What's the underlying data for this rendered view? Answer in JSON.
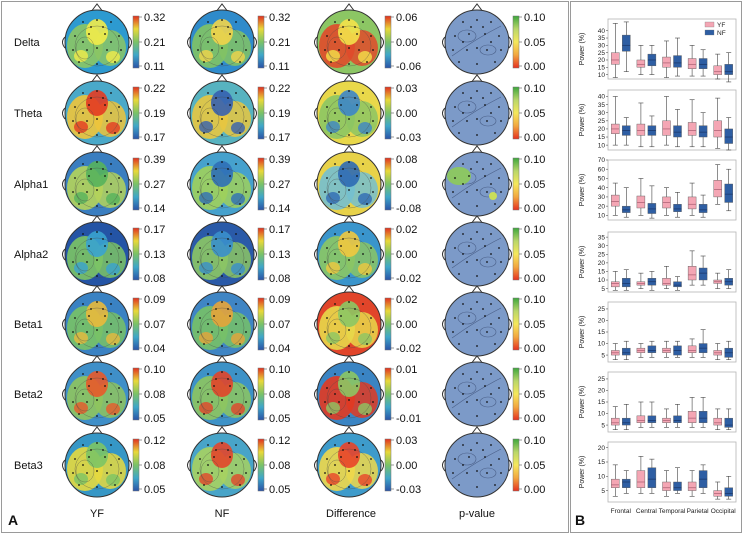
{
  "panel_a": {
    "letter": "A",
    "column_labels": [
      "YF",
      "NF",
      "Difference",
      "p-value"
    ],
    "rows": [
      {
        "band": "Delta",
        "yf_scale": [
          "0.32",
          "0.21",
          "0.11"
        ],
        "nf_scale": [
          "0.32",
          "0.21",
          "0.11"
        ],
        "diff_scale": [
          "0.06",
          "0.00",
          "-0.06"
        ],
        "p_scale": [
          "0.10",
          "0.05",
          "0.00"
        ]
      },
      {
        "band": "Theta",
        "yf_scale": [
          "0.22",
          "0.19",
          "0.17"
        ],
        "nf_scale": [
          "0.22",
          "0.19",
          "0.17"
        ],
        "diff_scale": [
          "0.03",
          "0.00",
          "-0.03"
        ],
        "p_scale": [
          "0.10",
          "0.05",
          "0.00"
        ]
      },
      {
        "band": "Alpha1",
        "yf_scale": [
          "0.39",
          "0.27",
          "0.14"
        ],
        "nf_scale": [
          "0.39",
          "0.27",
          "0.14"
        ],
        "diff_scale": [
          "0.08",
          "0.00",
          "-0.08"
        ],
        "p_scale": [
          "0.10",
          "0.05",
          "0.00"
        ]
      },
      {
        "band": "Alpha2",
        "yf_scale": [
          "0.17",
          "0.13",
          "0.08"
        ],
        "nf_scale": [
          "0.17",
          "0.13",
          "0.08"
        ],
        "diff_scale": [
          "0.02",
          "0.00",
          "-0.02"
        ],
        "p_scale": [
          "0.10",
          "0.05",
          "0.00"
        ]
      },
      {
        "band": "Beta1",
        "yf_scale": [
          "0.09",
          "0.07",
          "0.04"
        ],
        "nf_scale": [
          "0.09",
          "0.07",
          "0.04"
        ],
        "diff_scale": [
          "0.02",
          "0.00",
          "-0.02"
        ],
        "p_scale": [
          "0.10",
          "0.05",
          "0.00"
        ]
      },
      {
        "band": "Beta2",
        "yf_scale": [
          "0.10",
          "0.08",
          "0.05"
        ],
        "nf_scale": [
          "0.10",
          "0.08",
          "0.05"
        ],
        "diff_scale": [
          "0.01",
          "0.00",
          "-0.01"
        ],
        "p_scale": [
          "0.10",
          "0.05",
          "0.00"
        ]
      },
      {
        "band": "Beta3",
        "yf_scale": [
          "0.12",
          "0.08",
          "0.05"
        ],
        "nf_scale": [
          "0.12",
          "0.08",
          "0.05"
        ],
        "diff_scale": [
          "0.03",
          "0.00",
          "-0.03"
        ],
        "p_scale": [
          "0.10",
          "0.05",
          "0.00"
        ]
      }
    ]
  },
  "chart_data": {
    "type": "box",
    "panel_letter": "B",
    "ylabel": "Power (%)",
    "categories": [
      "Frontal",
      "Central",
      "Temporal",
      "Parietal",
      "Occipital"
    ],
    "legend": [
      {
        "name": "YF",
        "color": "#f4a6b4"
      },
      {
        "name": "NF",
        "color": "#2e5ea3"
      }
    ],
    "note": "box values are [whisker_low, q1, median, q3, whisker_high] per region, estimated",
    "panels": [
      {
        "band": "Delta",
        "yticks": [
          10,
          15,
          20,
          25,
          30,
          35,
          40
        ],
        "ylim": [
          7,
          48
        ],
        "YF": [
          [
            8,
            17,
            20,
            25,
            45
          ],
          [
            10,
            15,
            17,
            20,
            30
          ],
          [
            8,
            15,
            18,
            22,
            33
          ],
          [
            9,
            14,
            17,
            21,
            30
          ],
          [
            7,
            10,
            12,
            16,
            24
          ]
        ],
        "NF": [
          [
            12,
            26,
            30,
            37,
            46
          ],
          [
            10,
            16,
            20,
            24,
            30
          ],
          [
            9,
            15,
            18,
            23,
            35
          ],
          [
            9,
            14,
            17,
            21,
            27
          ],
          [
            5,
            10,
            12,
            17,
            25
          ]
        ]
      },
      {
        "band": "Theta",
        "yticks": [
          10,
          15,
          20,
          25,
          30,
          35,
          40
        ],
        "ylim": [
          7,
          44
        ],
        "YF": [
          [
            10,
            17,
            20,
            23,
            40
          ],
          [
            9,
            16,
            19,
            23,
            36
          ],
          [
            10,
            16,
            20,
            25,
            40
          ],
          [
            9,
            16,
            19,
            24,
            38
          ],
          [
            8,
            15,
            19,
            25,
            39
          ]
        ],
        "NF": [
          [
            10,
            16,
            19,
            22,
            27
          ],
          [
            9,
            16,
            19,
            22,
            28
          ],
          [
            9,
            15,
            18,
            22,
            32
          ],
          [
            9,
            15,
            18,
            22,
            30
          ],
          [
            7,
            11,
            15,
            20,
            27
          ]
        ]
      },
      {
        "band": "Alpha1",
        "yticks": [
          10,
          20,
          30,
          40,
          50,
          60,
          70
        ],
        "ylim": [
          5,
          70
        ],
        "YF": [
          [
            10,
            20,
            25,
            32,
            45
          ],
          [
            10,
            18,
            24,
            31,
            50
          ],
          [
            10,
            18,
            24,
            30,
            40
          ],
          [
            10,
            17,
            22,
            30,
            45
          ],
          [
            22,
            30,
            38,
            48,
            65
          ]
        ],
        "NF": [
          [
            8,
            13,
            16,
            20,
            40
          ],
          [
            7,
            12,
            17,
            23,
            42
          ],
          [
            8,
            14,
            17,
            22,
            35
          ],
          [
            8,
            13,
            16,
            22,
            32
          ],
          [
            15,
            24,
            33,
            44,
            60
          ]
        ]
      },
      {
        "band": "Alpha2",
        "yticks": [
          5,
          10,
          15,
          20,
          25,
          30,
          35
        ],
        "ylim": [
          3,
          38
        ],
        "YF": [
          [
            4,
            6,
            8,
            9,
            15
          ],
          [
            5,
            7,
            8,
            9,
            14
          ],
          [
            5,
            7,
            8,
            11,
            18
          ],
          [
            7,
            10,
            13,
            18,
            27
          ],
          [
            5,
            8,
            9,
            10,
            14
          ]
        ],
        "NF": [
          [
            4,
            6,
            8,
            11,
            16
          ],
          [
            4,
            7,
            9,
            11,
            15
          ],
          [
            4,
            6,
            7,
            9,
            12
          ],
          [
            7,
            10,
            14,
            17,
            24
          ],
          [
            5,
            7,
            9,
            11,
            16
          ]
        ]
      },
      {
        "band": "Beta1",
        "yticks": [
          5,
          10,
          15,
          20,
          25
        ],
        "ylim": [
          2,
          28
        ],
        "YF": [
          [
            3,
            5,
            6,
            7,
            10
          ],
          [
            4,
            6,
            7,
            8,
            10
          ],
          [
            4,
            6,
            7,
            8,
            11
          ],
          [
            4,
            6,
            7,
            9,
            12
          ],
          [
            3,
            5,
            6,
            7,
            10
          ]
        ],
        "NF": [
          [
            3,
            5,
            6,
            8,
            11
          ],
          [
            4,
            6,
            7,
            9,
            11
          ],
          [
            4,
            5,
            7,
            9,
            11
          ],
          [
            4,
            6,
            8,
            10,
            16
          ],
          [
            3,
            4,
            6,
            8,
            11
          ]
        ]
      },
      {
        "band": "Beta2",
        "yticks": [
          5,
          10,
          15,
          20,
          25
        ],
        "ylim": [
          2,
          28
        ],
        "YF": [
          [
            3,
            5,
            6,
            8,
            13
          ],
          [
            4,
            6,
            7,
            9,
            15
          ],
          [
            4,
            6,
            7,
            8,
            12
          ],
          [
            4,
            6,
            8,
            11,
            17
          ],
          [
            3,
            5,
            6,
            8,
            12
          ]
        ],
        "NF": [
          [
            3,
            5,
            6,
            8,
            14
          ],
          [
            4,
            6,
            7,
            9,
            15
          ],
          [
            4,
            6,
            7,
            9,
            14
          ],
          [
            4,
            6,
            8,
            11,
            17
          ],
          [
            3,
            4,
            5,
            8,
            12
          ]
        ]
      },
      {
        "band": "Beta3",
        "yticks": [
          5,
          10,
          15,
          20
        ],
        "ylim": [
          1,
          22
        ],
        "YF": [
          [
            3,
            6,
            7,
            9,
            14
          ],
          [
            4,
            6,
            8,
            12,
            17
          ],
          [
            3,
            5,
            6,
            8,
            12
          ],
          [
            3,
            5,
            6,
            8,
            12
          ],
          [
            2,
            3,
            4,
            5,
            8
          ]
        ],
        "NF": [
          [
            4,
            6,
            8,
            9,
            12
          ],
          [
            4,
            6,
            9,
            13,
            16
          ],
          [
            4,
            5,
            6,
            8,
            13
          ],
          [
            4,
            6,
            9,
            12,
            14
          ],
          [
            2,
            3,
            4,
            6,
            10
          ]
        ]
      }
    ]
  }
}
